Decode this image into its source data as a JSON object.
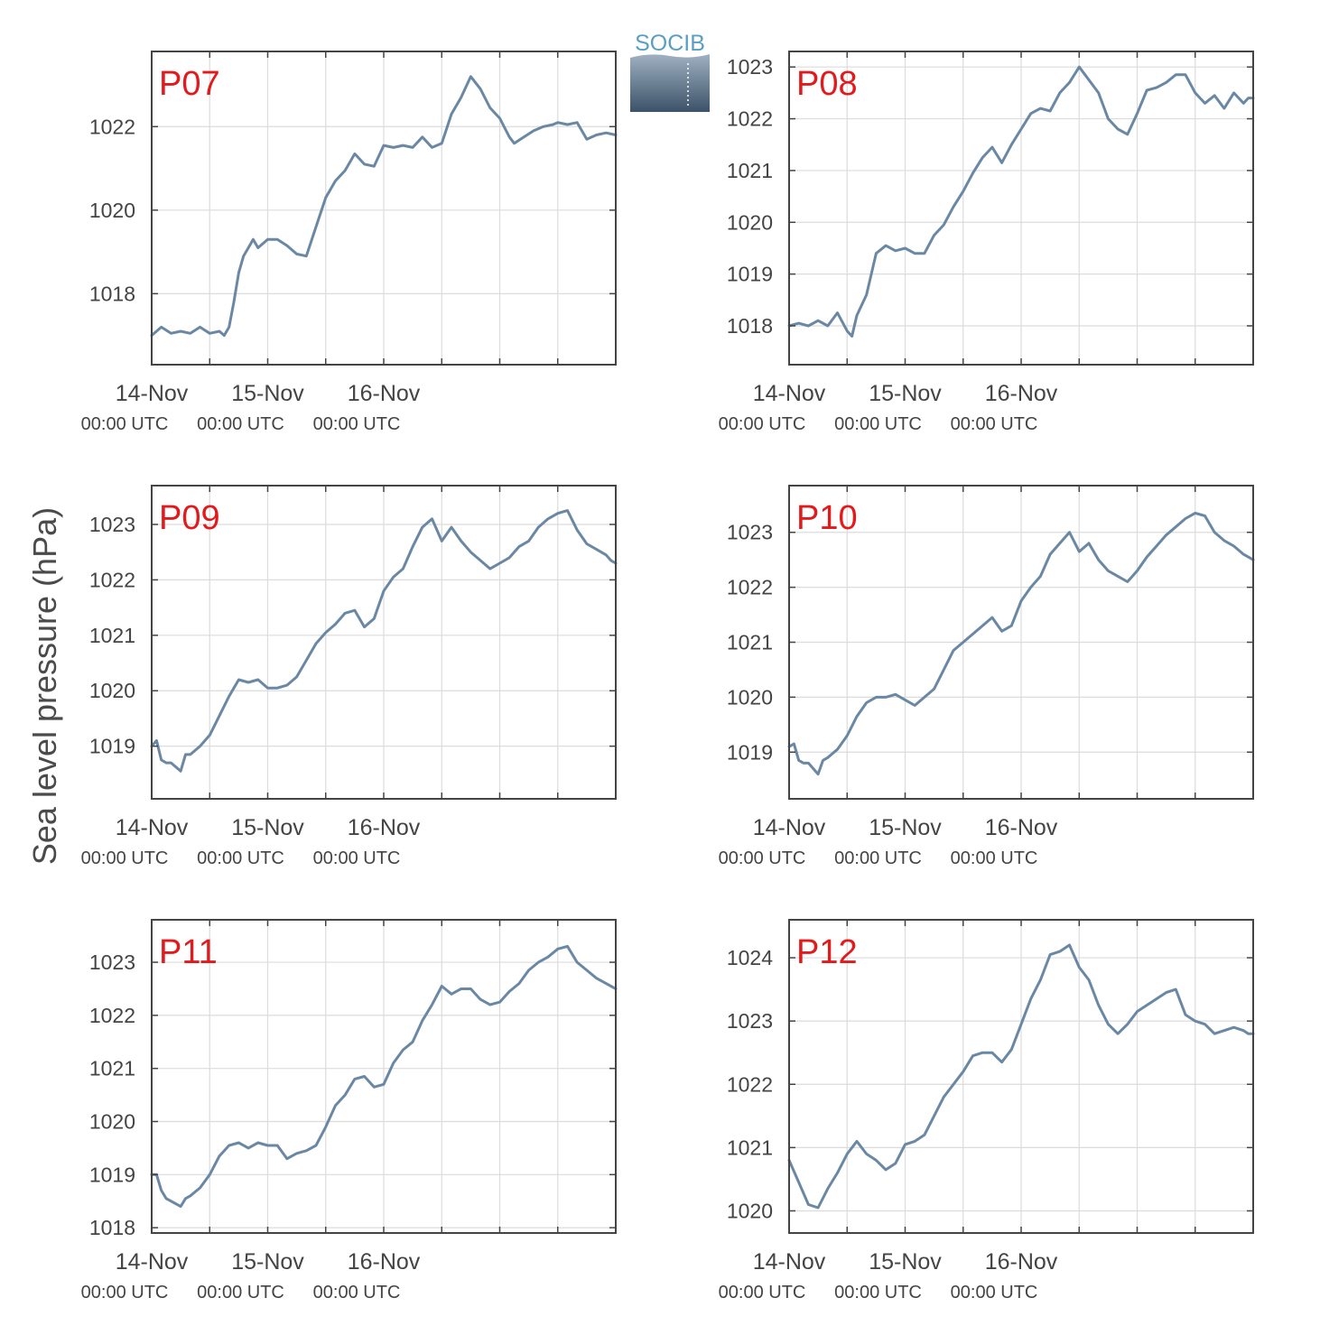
{
  "figure": {
    "ylabel": "Sea level pressure (hPa)",
    "logo_text": "SOCIB",
    "colors": {
      "line": "#6a88a4",
      "station_label": "#e31a1c",
      "axes": "#444444",
      "grid": "#dcdcdc",
      "text": "#444444"
    }
  },
  "chart_data": [
    {
      "type": "line",
      "station": "P07",
      "ylim": [
        1016.3,
        1023.8
      ],
      "yticks": [
        1018,
        1020,
        1022
      ],
      "xticks": [
        {
          "day": 0,
          "date": "14-Nov",
          "time": "00:00 UTC"
        },
        {
          "day": 1,
          "date": "15-Nov",
          "time": "00:00 UTC"
        },
        {
          "day": 2,
          "date": "16-Nov",
          "time": "00:00 UTC"
        }
      ],
      "x_hours": [
        0,
        2,
        4,
        6,
        8,
        10,
        12,
        14,
        15,
        16,
        17,
        18,
        19,
        20,
        21,
        22,
        24,
        26,
        28,
        30,
        32,
        34,
        36,
        38,
        40,
        42,
        44,
        46,
        48,
        50,
        52,
        54,
        56,
        58,
        60,
        62,
        64,
        66,
        68,
        70,
        72,
        74,
        75,
        77,
        79,
        81,
        83,
        84,
        86,
        88,
        90,
        92,
        94,
        96
      ],
      "values": [
        1017.0,
        1017.2,
        1017.05,
        1017.1,
        1017.05,
        1017.2,
        1017.05,
        1017.1,
        1017.0,
        1017.2,
        1017.8,
        1018.5,
        1018.9,
        1019.1,
        1019.3,
        1019.1,
        1019.3,
        1019.3,
        1019.15,
        1018.95,
        1018.9,
        1019.6,
        1020.3,
        1020.7,
        1020.95,
        1021.35,
        1021.1,
        1021.05,
        1021.55,
        1021.5,
        1021.55,
        1021.5,
        1021.75,
        1021.5,
        1021.6,
        1022.3,
        1022.7,
        1023.2,
        1022.9,
        1022.45,
        1022.2,
        1021.75,
        1021.6,
        1021.75,
        1021.9,
        1022.0,
        1022.05,
        1022.1,
        1022.05,
        1022.1,
        1021.7,
        1021.8,
        1021.85,
        1021.8
      ]
    },
    {
      "type": "line",
      "station": "P08",
      "ylim": [
        1017.25,
        1023.3
      ],
      "yticks": [
        1018,
        1019,
        1020,
        1021,
        1022,
        1023
      ],
      "xticks": [
        {
          "day": 0,
          "date": "14-Nov",
          "time": "00:00 UTC"
        },
        {
          "day": 1,
          "date": "15-Nov",
          "time": "00:00 UTC"
        },
        {
          "day": 2,
          "date": "16-Nov",
          "time": "00:00 UTC"
        }
      ],
      "x_hours": [
        0,
        2,
        4,
        6,
        8,
        10,
        12,
        13,
        14,
        16,
        18,
        20,
        22,
        24,
        26,
        28,
        30,
        32,
        34,
        36,
        38,
        40,
        42,
        44,
        46,
        48,
        50,
        52,
        54,
        56,
        58,
        60,
        62,
        64,
        66,
        68,
        70,
        72,
        74,
        76,
        78,
        80,
        82,
        84,
        86,
        88,
        90,
        92,
        94,
        95,
        96
      ],
      "values": [
        1018.0,
        1018.05,
        1018.0,
        1018.1,
        1018.0,
        1018.25,
        1017.9,
        1017.8,
        1018.2,
        1018.6,
        1019.4,
        1019.55,
        1019.45,
        1019.5,
        1019.4,
        1019.4,
        1019.75,
        1019.95,
        1020.3,
        1020.6,
        1020.95,
        1021.25,
        1021.45,
        1021.15,
        1021.5,
        1021.8,
        1022.1,
        1022.2,
        1022.15,
        1022.5,
        1022.7,
        1023.0,
        1022.75,
        1022.5,
        1022.0,
        1021.8,
        1021.7,
        1022.1,
        1022.55,
        1022.6,
        1022.7,
        1022.85,
        1022.85,
        1022.5,
        1022.3,
        1022.45,
        1022.2,
        1022.5,
        1022.3,
        1022.4,
        1022.4
      ]
    },
    {
      "type": "line",
      "station": "P09",
      "ylim": [
        1018.05,
        1023.7
      ],
      "yticks": [
        1019,
        1020,
        1021,
        1022,
        1023
      ],
      "xticks": [
        {
          "day": 0,
          "date": "14-Nov",
          "time": "00:00 UTC"
        },
        {
          "day": 1,
          "date": "15-Nov",
          "time": "00:00 UTC"
        },
        {
          "day": 2,
          "date": "16-Nov",
          "time": "00:00 UTC"
        }
      ],
      "x_hours": [
        0,
        1,
        2,
        3,
        4,
        6,
        7,
        8,
        10,
        12,
        14,
        16,
        18,
        20,
        22,
        24,
        26,
        28,
        30,
        32,
        34,
        36,
        38,
        40,
        42,
        44,
        46,
        48,
        50,
        52,
        54,
        56,
        58,
        60,
        62,
        64,
        66,
        68,
        70,
        72,
        74,
        76,
        78,
        80,
        82,
        84,
        86,
        88,
        90,
        92,
        94,
        95,
        96
      ],
      "values": [
        1019.0,
        1019.1,
        1018.75,
        1018.7,
        1018.7,
        1018.55,
        1018.85,
        1018.85,
        1019.0,
        1019.2,
        1019.55,
        1019.9,
        1020.2,
        1020.15,
        1020.2,
        1020.05,
        1020.05,
        1020.1,
        1020.25,
        1020.55,
        1020.85,
        1021.05,
        1021.2,
        1021.4,
        1021.45,
        1021.15,
        1021.3,
        1021.8,
        1022.05,
        1022.2,
        1022.6,
        1022.95,
        1023.1,
        1022.7,
        1022.95,
        1022.7,
        1022.5,
        1022.35,
        1022.2,
        1022.3,
        1022.4,
        1022.6,
        1022.7,
        1022.95,
        1023.1,
        1023.2,
        1023.25,
        1022.9,
        1022.65,
        1022.55,
        1022.45,
        1022.35,
        1022.3
      ]
    },
    {
      "type": "line",
      "station": "P10",
      "ylim": [
        1018.15,
        1023.85
      ],
      "yticks": [
        1019,
        1020,
        1021,
        1022,
        1023
      ],
      "xticks": [
        {
          "day": 0,
          "date": "14-Nov",
          "time": "00:00 UTC"
        },
        {
          "day": 1,
          "date": "15-Nov",
          "time": "00:00 UTC"
        },
        {
          "day": 2,
          "date": "16-Nov",
          "time": "00:00 UTC"
        }
      ],
      "x_hours": [
        0,
        1,
        2,
        3,
        4,
        6,
        7,
        8,
        10,
        12,
        14,
        16,
        18,
        20,
        22,
        24,
        26,
        28,
        30,
        32,
        34,
        36,
        38,
        40,
        42,
        44,
        46,
        48,
        50,
        52,
        54,
        56,
        58,
        60,
        62,
        64,
        66,
        68,
        70,
        72,
        74,
        76,
        78,
        80,
        82,
        84,
        86,
        88,
        90,
        92,
        94,
        95,
        96
      ],
      "values": [
        1019.1,
        1019.15,
        1018.85,
        1018.8,
        1018.8,
        1018.6,
        1018.85,
        1018.9,
        1019.05,
        1019.3,
        1019.65,
        1019.9,
        1020.0,
        1020.0,
        1020.05,
        1019.95,
        1019.85,
        1020.0,
        1020.15,
        1020.5,
        1020.85,
        1021.0,
        1021.15,
        1021.3,
        1021.45,
        1021.2,
        1021.3,
        1021.75,
        1022.0,
        1022.2,
        1022.6,
        1022.8,
        1023.0,
        1022.65,
        1022.8,
        1022.5,
        1022.3,
        1022.2,
        1022.1,
        1022.3,
        1022.55,
        1022.75,
        1022.95,
        1023.1,
        1023.25,
        1023.35,
        1023.3,
        1023.0,
        1022.85,
        1022.75,
        1022.6,
        1022.55,
        1022.5
      ]
    },
    {
      "type": "line",
      "station": "P11",
      "ylim": [
        1017.9,
        1023.8
      ],
      "yticks": [
        1018,
        1019,
        1020,
        1021,
        1022,
        1023
      ],
      "xticks": [
        {
          "day": 0,
          "date": "14-Nov",
          "time": "00:00 UTC"
        },
        {
          "day": 1,
          "date": "15-Nov",
          "time": "00:00 UTC"
        },
        {
          "day": 2,
          "date": "16-Nov",
          "time": "00:00 UTC"
        }
      ],
      "x_hours": [
        0,
        1,
        2,
        3,
        4,
        6,
        7,
        8,
        10,
        12,
        14,
        16,
        18,
        20,
        22,
        24,
        26,
        28,
        30,
        32,
        34,
        36,
        38,
        40,
        42,
        44,
        46,
        48,
        50,
        52,
        54,
        56,
        58,
        60,
        62,
        64,
        66,
        68,
        70,
        72,
        74,
        76,
        78,
        80,
        82,
        84,
        86,
        88,
        90,
        92,
        94,
        95,
        96
      ],
      "values": [
        1019.0,
        1019.0,
        1018.7,
        1018.55,
        1018.5,
        1018.4,
        1018.55,
        1018.6,
        1018.75,
        1019.0,
        1019.35,
        1019.55,
        1019.6,
        1019.5,
        1019.6,
        1019.55,
        1019.55,
        1019.3,
        1019.4,
        1019.45,
        1019.55,
        1019.9,
        1020.3,
        1020.5,
        1020.8,
        1020.85,
        1020.65,
        1020.7,
        1021.1,
        1021.35,
        1021.5,
        1021.9,
        1022.2,
        1022.55,
        1022.4,
        1022.5,
        1022.5,
        1022.3,
        1022.2,
        1022.25,
        1022.45,
        1022.6,
        1022.85,
        1023.0,
        1023.1,
        1023.25,
        1023.3,
        1023.0,
        1022.85,
        1022.7,
        1022.6,
        1022.55,
        1022.5
      ]
    },
    {
      "type": "line",
      "station": "P12",
      "ylim": [
        1019.65,
        1024.6
      ],
      "yticks": [
        1020,
        1021,
        1022,
        1023,
        1024
      ],
      "xticks": [
        {
          "day": 0,
          "date": "14-Nov",
          "time": "00:00 UTC"
        },
        {
          "day": 1,
          "date": "15-Nov",
          "time": "00:00 UTC"
        },
        {
          "day": 2,
          "date": "16-Nov",
          "time": "00:00 UTC"
        }
      ],
      "x_hours": [
        0,
        2,
        4,
        6,
        8,
        10,
        12,
        14,
        16,
        18,
        20,
        22,
        24,
        26,
        28,
        30,
        32,
        34,
        36,
        38,
        40,
        42,
        44,
        46,
        48,
        50,
        52,
        54,
        56,
        58,
        60,
        62,
        64,
        66,
        68,
        70,
        72,
        74,
        76,
        78,
        80,
        82,
        84,
        86,
        88,
        90,
        92,
        94,
        95,
        96
      ],
      "values": [
        1020.8,
        1020.45,
        1020.1,
        1020.05,
        1020.35,
        1020.6,
        1020.9,
        1021.1,
        1020.9,
        1020.8,
        1020.65,
        1020.75,
        1021.05,
        1021.1,
        1021.2,
        1021.5,
        1021.8,
        1022.0,
        1022.2,
        1022.45,
        1022.5,
        1022.5,
        1022.35,
        1022.55,
        1022.95,
        1023.35,
        1023.65,
        1024.05,
        1024.1,
        1024.2,
        1023.85,
        1023.65,
        1023.25,
        1022.95,
        1022.8,
        1022.95,
        1023.15,
        1023.25,
        1023.35,
        1023.45,
        1023.5,
        1023.1,
        1023.0,
        1022.95,
        1022.8,
        1022.85,
        1022.9,
        1022.85,
        1022.8,
        1022.8
      ]
    }
  ]
}
